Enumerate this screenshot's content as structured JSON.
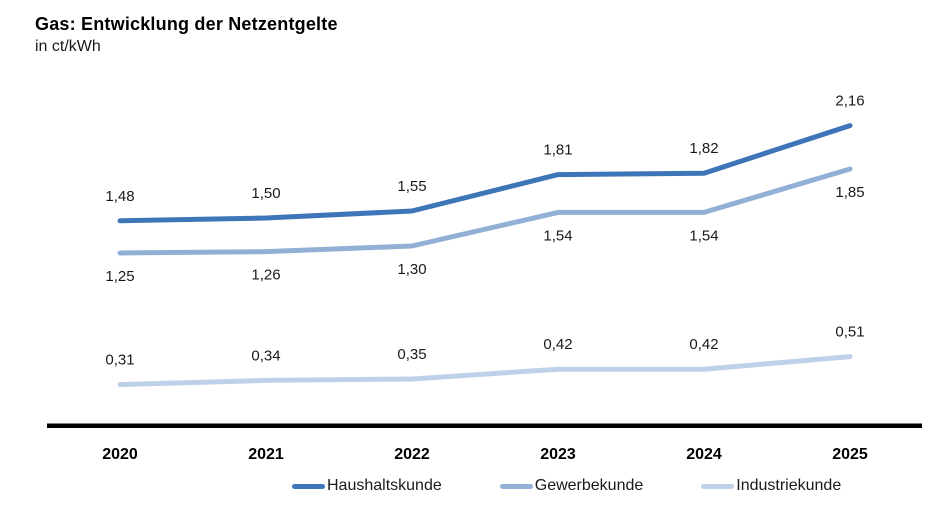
{
  "chart_data": {
    "type": "line",
    "title": "Gas: Entwicklung der Netzentgelte",
    "subtitle": "in ct/kWh",
    "unit": "ct/kWh",
    "categories": [
      "2020",
      "2021",
      "2022",
      "2023",
      "2024",
      "2025"
    ],
    "series": [
      {
        "name": "Haushaltskunde",
        "color": "#3E74B8",
        "values": [
          1.48,
          1.5,
          1.55,
          1.81,
          1.82,
          2.16
        ],
        "labels": [
          "1,48",
          "1,50",
          "1,55",
          "1,81",
          "1,82",
          "2,16"
        ],
        "label_position": "above"
      },
      {
        "name": "Gewerbekunde",
        "color": "#92B0D6",
        "values": [
          1.25,
          1.26,
          1.3,
          1.54,
          1.54,
          1.85
        ],
        "labels": [
          "1,25",
          "1,26",
          "1,30",
          "1,54",
          "1,54",
          "1,85"
        ],
        "label_position": "below"
      },
      {
        "name": "Industriekunde",
        "color": "#BFD1E8",
        "values": [
          0.31,
          0.34,
          0.35,
          0.42,
          0.42,
          0.51
        ],
        "labels": [
          "0,31",
          "0,34",
          "0,35",
          "0,42",
          "0,42",
          "0,51"
        ],
        "label_position": "above"
      }
    ],
    "axis_color": "#000000",
    "text_color": "#1a1a1a",
    "ylim": [
      0,
      2.9
    ],
    "grid": false,
    "legend_position": "bottom"
  }
}
